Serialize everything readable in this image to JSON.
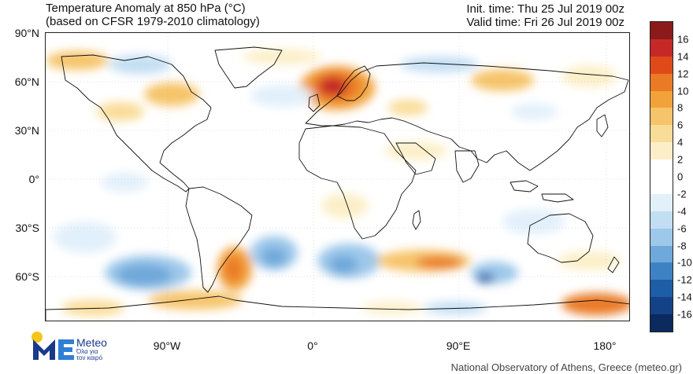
{
  "header": {
    "title_line1": "Temperature Anomaly at 850 hPa (°C)",
    "title_line2": "(based on CFSR 1979-2010 climatology)",
    "init_time": "Init. time: Thu 25 Jul 2019 00z",
    "valid_time": "Valid time: Fri 26 Jul 2019 00z"
  },
  "axes": {
    "lat_ticks": [
      "90°N",
      "60°N",
      "30°N",
      "0°",
      "30°S",
      "60°S"
    ],
    "lon_ticks": [
      "90°W",
      "0°",
      "90°E",
      "180°"
    ]
  },
  "colorbar": {
    "labels": [
      "16",
      "14",
      "12",
      "10",
      "8",
      "6",
      "4",
      "2",
      "0",
      "-2",
      "-4",
      "-6",
      "-8",
      "-10",
      "-12",
      "-14",
      "-16"
    ],
    "colors": [
      "#8b1a1a",
      "#c62828",
      "#e04a1a",
      "#ea7a26",
      "#f2a23a",
      "#f6c46a",
      "#f9dc97",
      "#fcefc8",
      "#ffffff",
      "#ffffff",
      "#e2f0fb",
      "#c2def3",
      "#9dc8ea",
      "#6fa8da",
      "#3f82c4",
      "#1e5ea6",
      "#144287",
      "#0b2a5e"
    ]
  },
  "branding": {
    "logo_name": "Meteo",
    "logo_tagline_1": "Όλα για",
    "logo_tagline_2": "τον καιρό",
    "credit": "National Observatory of Athens, Greece (meteo.gr)"
  }
}
